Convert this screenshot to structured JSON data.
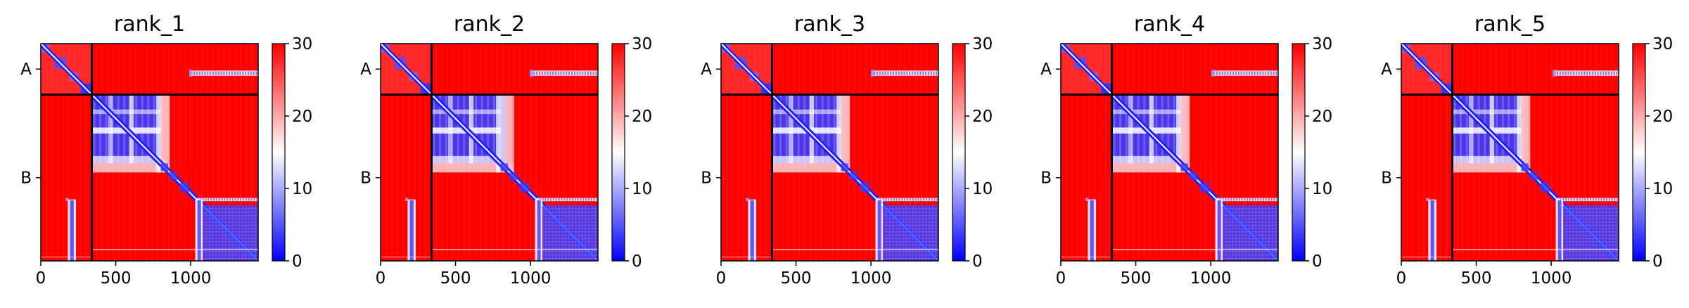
{
  "chart_data": {
    "type": "heatmap",
    "panels": [
      {
        "title": "rank_1"
      },
      {
        "title": "rank_2"
      },
      {
        "title": "rank_3"
      },
      {
        "title": "rank_4"
      },
      {
        "title": "rank_5"
      }
    ],
    "x_ticks": [
      "0",
      "500",
      "1000"
    ],
    "x_tick_values": [
      0,
      500,
      1000
    ],
    "xlim": [
      0,
      1450
    ],
    "chains": [
      {
        "label": "A",
        "start": 0,
        "end": 340
      },
      {
        "label": "B",
        "start": 340,
        "end": 1450
      }
    ],
    "colorbar": {
      "min": 0,
      "max": 30,
      "ticks": [
        "0",
        "10",
        "20",
        "30"
      ],
      "tick_values": [
        0,
        10,
        20,
        30
      ],
      "colors": [
        "#0000ff",
        "#ffffff",
        "#ff0000"
      ]
    },
    "colormap": "bwr",
    "interpretation_hint": "predicted aligned error matrix per model rank"
  }
}
